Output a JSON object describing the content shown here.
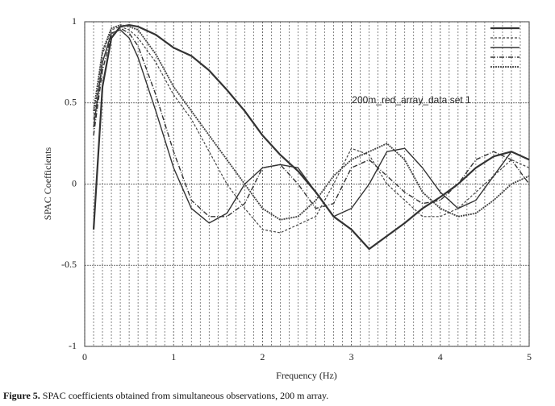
{
  "chart_data": {
    "type": "line",
    "x_label": "Frequency (Hz)",
    "y_label": "SPAC Coefficients",
    "annotation": "200m_red_array_data set 1",
    "xlim": [
      0,
      5
    ],
    "ylim": [
      -1,
      1
    ],
    "xticks": [
      0,
      1,
      2,
      3,
      4,
      5
    ],
    "yticks": [
      1,
      0.5,
      0,
      -0.5,
      -1
    ],
    "xminorticks": [
      0.1,
      0.2,
      0.3,
      0.4,
      0.5,
      0.6,
      0.7,
      0.8,
      0.9,
      1.1,
      1.2,
      1.3,
      1.4,
      1.5,
      1.6,
      1.7,
      1.8,
      1.9,
      2.1,
      2.2,
      2.3,
      2.4,
      2.5,
      2.6,
      2.7,
      2.8,
      2.9,
      3.1,
      3.2,
      3.3,
      3.4,
      3.5,
      3.6,
      3.7,
      3.8,
      3.9,
      4.1,
      4.2,
      4.3,
      4.4,
      4.5,
      4.6,
      4.7,
      4.8,
      4.9
    ],
    "grid": true,
    "legend": "upper right",
    "x": [
      0.1,
      0.2,
      0.3,
      0.4,
      0.5,
      0.6,
      0.8,
      1.0,
      1.2,
      1.4,
      1.6,
      1.8,
      2.0,
      2.2,
      2.4,
      2.6,
      2.8,
      3.0,
      3.2,
      3.4,
      3.6,
      3.8,
      4.0,
      4.2,
      4.4,
      4.6,
      4.8,
      5.0
    ],
    "series": [
      {
        "color": "#333333",
        "dash": "none",
        "width": 2.2,
        "values": [
          -0.28,
          0.6,
          0.9,
          0.97,
          0.98,
          0.97,
          0.92,
          0.84,
          0.79,
          0.7,
          0.58,
          0.45,
          0.3,
          0.18,
          0.08,
          -0.05,
          -0.2,
          -0.28,
          -0.4,
          -0.32,
          -0.24,
          -0.15,
          -0.08,
          0.0,
          0.1,
          0.17,
          0.2,
          0.15
        ]
      },
      {
        "color": "#444444",
        "dash": "3,2",
        "width": 1.2,
        "values": [
          0.4,
          0.8,
          0.95,
          0.97,
          0.95,
          0.9,
          0.75,
          0.55,
          0.4,
          0.2,
          0.0,
          -0.15,
          -0.28,
          -0.3,
          -0.25,
          -0.2,
          0.0,
          0.22,
          0.18,
          0.0,
          -0.1,
          -0.2,
          -0.2,
          -0.15,
          -0.05,
          0.05,
          0.15,
          0.1
        ]
      },
      {
        "color": "#333333",
        "dash": "none",
        "width": 1.4,
        "values": [
          0.35,
          0.75,
          0.93,
          0.95,
          0.9,
          0.78,
          0.45,
          0.1,
          -0.15,
          -0.24,
          -0.18,
          0.0,
          0.1,
          0.12,
          0.1,
          -0.05,
          -0.2,
          -0.15,
          0.0,
          0.2,
          0.22,
          0.1,
          -0.05,
          -0.15,
          -0.1,
          0.05,
          0.2,
          0.15
        ]
      },
      {
        "color": "#333333",
        "dash": "6,2,1,2",
        "width": 1.4,
        "values": [
          0.3,
          0.7,
          0.92,
          0.96,
          0.93,
          0.85,
          0.55,
          0.2,
          -0.1,
          -0.2,
          -0.2,
          -0.12,
          0.1,
          0.12,
          0.0,
          -0.15,
          -0.12,
          0.1,
          0.15,
          0.05,
          -0.05,
          -0.12,
          -0.1,
          0.0,
          0.15,
          0.2,
          0.15,
          0.0
        ]
      },
      {
        "color": "#444444",
        "dash": "2,1",
        "width": 1.8,
        "values": [
          0.45,
          0.82,
          0.96,
          0.98,
          0.97,
          0.95,
          0.8,
          0.6,
          0.45,
          0.3,
          0.15,
          0.0,
          -0.15,
          -0.22,
          -0.2,
          -0.1,
          0.05,
          0.15,
          0.2,
          0.25,
          0.15,
          -0.05,
          -0.15,
          -0.2,
          -0.18,
          -0.1,
          0.0,
          0.05
        ]
      }
    ]
  },
  "caption": {
    "label": "Figure 5.",
    "text": "SPAC coefficients obtained from simultaneous observations, 200 m array."
  }
}
